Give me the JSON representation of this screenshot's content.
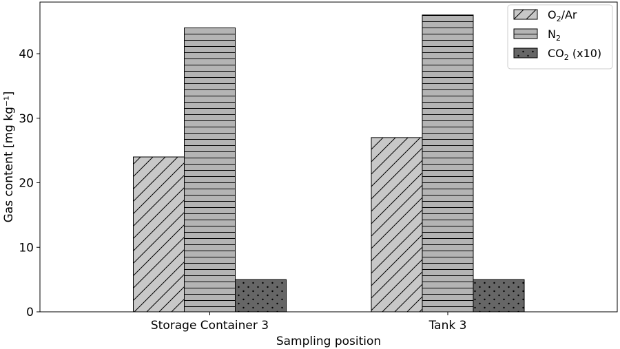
{
  "chart_data": {
    "type": "bar",
    "categories": [
      "Storage Container 3",
      "Tank 3"
    ],
    "series": [
      {
        "name": "O2/Ar",
        "legend_main": "O",
        "legend_sub": "2",
        "legend_after": "/Ar",
        "values": [
          24,
          27
        ],
        "color": "#c8c8c8",
        "pattern": "diagonal-hatch"
      },
      {
        "name": "N2",
        "legend_main": "N",
        "legend_sub": "2",
        "legend_after": "",
        "values": [
          44,
          46
        ],
        "color": "#b4b4b4",
        "pattern": "horizontal-hatch"
      },
      {
        "name": "CO2 (x10)",
        "legend_main": "CO",
        "legend_sub": "2",
        "legend_after": " (x10)",
        "values": [
          5,
          5
        ],
        "color": "#666666",
        "pattern": "dots"
      }
    ],
    "xlabel": "Sampling position",
    "ylabel": "Gas content [mg kg⁻¹]",
    "ylim": [
      0,
      48
    ],
    "yticks": [
      "0",
      "10",
      "20",
      "30",
      "40"
    ],
    "legend_position": "top-right",
    "grid": false
  }
}
